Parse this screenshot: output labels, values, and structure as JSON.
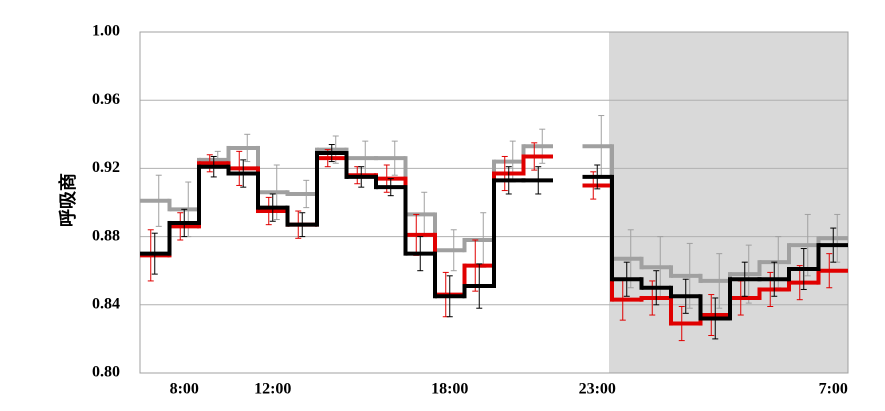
{
  "chart_data": {
    "type": "step",
    "y_label": "呼吸商",
    "categories": [
      null,
      "8:00",
      null,
      null,
      "12:00",
      null,
      null,
      null,
      null,
      null,
      "18:00",
      null,
      null,
      null,
      null,
      "23:00",
      null,
      null,
      null,
      null,
      null,
      null,
      null,
      "7:00"
    ],
    "ylim": [
      0.8,
      1.0
    ],
    "yticks": [
      {
        "value": 0.8,
        "label": "0.80"
      },
      0.84,
      0.88,
      0.92,
      0.96,
      {
        "value": 1.0,
        "label": "1.00"
      }
    ],
    "grid": true,
    "series": [
      {
        "color": "#a0a0a0",
        "values": [
          0.901,
          0.896,
          0.925,
          0.932,
          0.906,
          0.905,
          0.931,
          0.926,
          0.926,
          0.893,
          0.872,
          0.878,
          0.924,
          0.933,
          null,
          0.933,
          0.867,
          0.862,
          0.857,
          0.854,
          0.858,
          0.865,
          0.875,
          0.879
        ],
        "errors": [
          0.015,
          0.016,
          0.005,
          0.008,
          0.016,
          0.008,
          0.008,
          0.01,
          0.01,
          0.013,
          0.012,
          0.016,
          0.012,
          0.01,
          null,
          0.018,
          0.017,
          0.018,
          0.019,
          0.016,
          0.017,
          0.015,
          0.018,
          0.014
        ]
      },
      {
        "color": "#e00000",
        "values": [
          0.869,
          0.886,
          0.923,
          0.92,
          0.895,
          0.887,
          0.926,
          0.916,
          0.914,
          0.881,
          0.846,
          0.863,
          0.917,
          0.927,
          null,
          0.91,
          0.843,
          0.844,
          0.829,
          0.834,
          0.844,
          0.849,
          0.853,
          0.86
        ],
        "errors": [
          0.015,
          0.008,
          0.005,
          0.01,
          0.008,
          0.008,
          0.005,
          0.005,
          0.008,
          0.012,
          0.013,
          0.015,
          0.01,
          0.008,
          null,
          0.008,
          0.012,
          0.01,
          0.01,
          0.012,
          0.01,
          0.01,
          0.01,
          0.01
        ]
      },
      {
        "color": "#000000",
        "values": [
          0.87,
          0.888,
          0.921,
          0.917,
          0.897,
          0.887,
          0.929,
          0.915,
          0.909,
          0.87,
          0.845,
          0.851,
          0.913,
          0.913,
          null,
          0.915,
          0.855,
          0.85,
          0.845,
          0.832,
          0.855,
          0.855,
          0.861,
          0.875
        ],
        "errors": [
          0.012,
          0.008,
          0.006,
          0.008,
          0.008,
          0.007,
          0.005,
          0.006,
          0.005,
          0.01,
          0.012,
          0.013,
          0.008,
          0.008,
          null,
          0.007,
          0.01,
          0.01,
          0.01,
          0.012,
          0.01,
          0.01,
          0.012,
          0.01
        ]
      }
    ]
  }
}
